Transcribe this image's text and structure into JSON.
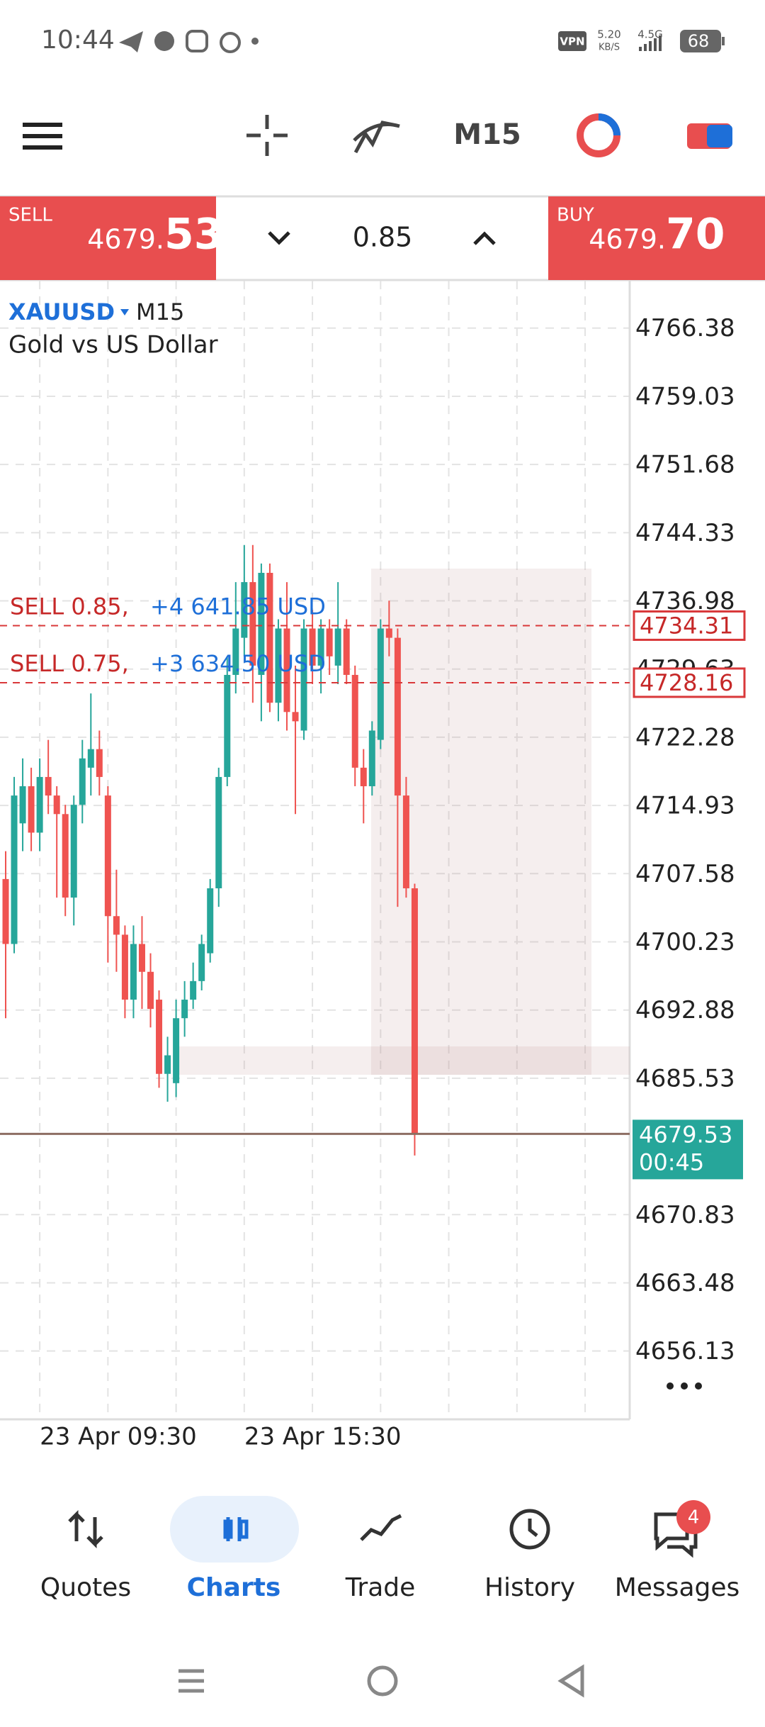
{
  "status_bar": {
    "time": "10:44",
    "vpn": "VPN",
    "speed": "5.20",
    "speed_unit": "KB/S",
    "network": "4.5G",
    "battery": "68"
  },
  "toolbar": {
    "timeframe": "M15"
  },
  "trade_panel": {
    "sell_label": "SELL",
    "sell_price_main": "4679.",
    "sell_price_big": "53",
    "volume": "0.85",
    "buy_label": "BUY",
    "buy_price_main": "4679.",
    "buy_price_big": "70"
  },
  "chart_data": {
    "type": "candlestick",
    "symbol": "XAUUSD",
    "timeframe": "M15",
    "subtitle": "Gold vs US Dollar",
    "categories": [
      null,
      null,
      null,
      null,
      "23 Apr 09:30",
      null,
      null,
      null,
      null,
      null,
      null,
      null,
      null,
      null,
      null,
      null,
      null,
      null,
      null,
      null,
      null,
      null,
      null,
      null,
      null,
      null,
      null,
      null,
      "23 Apr 15:30",
      null,
      null,
      null,
      null,
      null,
      null,
      null,
      null,
      null,
      null,
      null,
      null,
      null,
      null,
      null,
      null,
      null,
      null,
      null,
      null
    ],
    "open": [
      4707,
      4700,
      4713,
      4717,
      4712,
      4718,
      4716,
      4714,
      4705,
      4715,
      4719,
      4721,
      4716,
      4703,
      4701,
      4694,
      4700,
      4697,
      4694,
      4686,
      4685,
      4692,
      4694,
      4696,
      4699,
      4706,
      4718,
      4729,
      4733,
      4739,
      4729,
      4740,
      4726,
      4734,
      4725,
      4723,
      4734,
      4730,
      4734,
      4730,
      4734,
      4729,
      4719,
      4717,
      4722,
      4734,
      4733,
      4716,
      4706
    ],
    "high": [
      4710,
      4718,
      4720,
      4719,
      4720,
      4722,
      4717,
      4715,
      4716,
      4722,
      4727,
      4723,
      4717,
      4708,
      4702,
      4702,
      4703,
      4699,
      4695,
      4690,
      4694,
      4696,
      4698,
      4701,
      4707,
      4719,
      4731,
      4739,
      4743,
      4743,
      4741,
      4741,
      4735,
      4739,
      4730,
      4735,
      4736,
      4735,
      4735,
      4739,
      4735,
      4730,
      4721,
      4724,
      4735,
      4737,
      4734,
      4718,
      4706.5
    ],
    "low": [
      4692,
      4699,
      4710,
      4710,
      4710,
      4714,
      4705,
      4703,
      4702,
      4713,
      4716,
      4716,
      4698,
      4697,
      4692,
      4692,
      4693,
      4691,
      4684.5,
      4683,
      4683.5,
      4690,
      4693,
      4695,
      4698,
      4704,
      4717,
      4727,
      4731,
      4726,
      4724,
      4725,
      4724,
      4723,
      4714,
      4722,
      4728,
      4727,
      4729,
      4728,
      4728,
      4717,
      4713,
      4716,
      4721,
      4731,
      4704,
      4705,
      4677.2
    ],
    "close": [
      4700,
      4716,
      4717,
      4712,
      4718,
      4716,
      4714,
      4705,
      4715,
      4720,
      4721,
      4718,
      4703,
      4701,
      4694,
      4700,
      4697,
      4693,
      4686,
      4688,
      4692,
      4694,
      4696,
      4700,
      4706,
      4718,
      4729,
      4734,
      4739,
      4730,
      4740,
      4726,
      4734,
      4725,
      4724,
      4734,
      4730,
      4734,
      4731,
      4734,
      4729,
      4719,
      4717,
      4723,
      4734,
      4733,
      4716,
      4706,
      4679.53
    ],
    "up_color": "#26a69a",
    "down_color": "#ef5350",
    "ylim": [
      4648.77,
      4771.48
    ],
    "yticks": [
      4766.38,
      4759.03,
      4751.68,
      4744.33,
      4736.98,
      4729.63,
      4722.28,
      4714.93,
      4707.58,
      4700.23,
      4692.88,
      4685.53,
      4670.83,
      4663.48,
      4656.13
    ],
    "grid": true,
    "orders": [
      {
        "label": "SELL 0.85,",
        "profit": "+4 641.85 USD",
        "price": 4734.31
      },
      {
        "label": "SELL 0.75,",
        "profit": "+3 634.50 USD",
        "price": 4728.16
      }
    ],
    "current_price": 4679.53,
    "countdown": "00:45"
  },
  "nav": [
    {
      "label": "Quotes"
    },
    {
      "label": "Charts"
    },
    {
      "label": "Trade"
    },
    {
      "label": "History"
    },
    {
      "label": "Messages"
    }
  ],
  "messages_badge": "4"
}
